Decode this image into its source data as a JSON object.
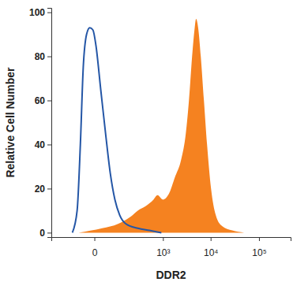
{
  "chart_data": {
    "type": "area",
    "x_label": "DDR2",
    "y_label": "Relative Cell Number",
    "log": "x",
    "xlim": [
      -270,
      450000
    ],
    "xticks": [
      0,
      {
        "value": 1000,
        "label": "10³"
      },
      {
        "value": 10000,
        "label": "10⁴"
      },
      {
        "value": 100000,
        "label": "10⁵"
      }
    ],
    "ylim": [
      -2,
      102
    ],
    "yticks": [
      0,
      20,
      40,
      60,
      80,
      100
    ],
    "series": [
      {
        "type": "area",
        "color": "#f58220",
        "x": [
          -45,
          18,
          83,
          176,
          274,
          416,
          624,
          760,
          1000,
          1365,
          1785,
          2424,
          3044,
          3540,
          4120,
          4616,
          4977,
          5576,
          6240,
          7256,
          8430,
          10200,
          12760,
          17240,
          28040,
          49240
        ],
        "values": [
          0,
          2,
          4,
          7,
          10,
          12,
          15,
          17,
          15,
          18,
          25,
          33,
          45,
          60,
          80,
          92,
          97,
          92,
          80,
          60,
          40,
          20,
          8,
          3,
          1,
          0
        ]
      },
      {
        "type": "line",
        "color": "#2456a6",
        "x": [
          -74,
          -51,
          -38,
          -28,
          -18,
          -10,
          -3,
          3,
          14,
          28,
          45,
          66,
          93,
          139,
          274,
          510,
          925
        ],
        "values": [
          0,
          10,
          40,
          75,
          90,
          93,
          92,
          85,
          65,
          45,
          27,
          15,
          8,
          4,
          2,
          1,
          0
        ]
      }
    ]
  }
}
